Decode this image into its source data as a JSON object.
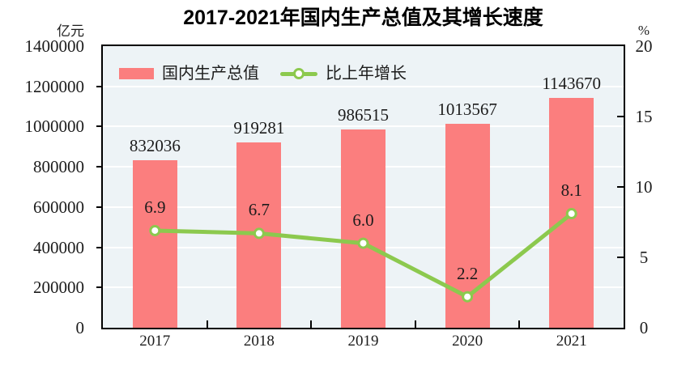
{
  "chart_data": {
    "type": "bar",
    "title": "2017-2021年国内生产总值及其增长速度",
    "categories": [
      "2017",
      "2018",
      "2019",
      "2020",
      "2021"
    ],
    "series": [
      {
        "name": "国内生产总值",
        "type": "bar",
        "axis": "left",
        "unit": "亿元",
        "values": [
          832036,
          919281,
          986515,
          1013567,
          1143670
        ],
        "labels": [
          "832036",
          "919281",
          "986515",
          "1013567",
          "1143670"
        ],
        "color": "#fb7e7e"
      },
      {
        "name": "比上年增长",
        "type": "line",
        "axis": "right",
        "unit": "%",
        "values": [
          6.9,
          6.7,
          6.0,
          2.2,
          8.1
        ],
        "labels": [
          "6.9",
          "6.7",
          "6.0",
          "2.2",
          "8.1"
        ],
        "color": "#8cc94e",
        "marker": "white-circle"
      }
    ],
    "left_axis": {
      "unit": "亿元",
      "min": 0,
      "max": 1400000,
      "tick_step": 200000,
      "tick_values": [
        0,
        200000,
        400000,
        600000,
        800000,
        1000000,
        1200000,
        1400000
      ],
      "tick_labels": [
        "0",
        "200000",
        "400000",
        "600000",
        "800000",
        "1000000",
        "1200000",
        "1400000"
      ]
    },
    "right_axis": {
      "unit": "%",
      "min": 0,
      "max": 20,
      "tick_step": 5,
      "tick_values": [
        0,
        5,
        10,
        15,
        20
      ],
      "tick_labels": [
        "0",
        "5",
        "10",
        "15",
        "20"
      ]
    },
    "grid": "horizontal",
    "legend_position": "top-inside",
    "plot_bg": "#edf3f6",
    "grid_color": "#ffffff",
    "axis_color": "#000000",
    "text_color": "#1c1c1c"
  },
  "legend": {
    "bar_label": "国内生产总值",
    "line_label": "比上年增长"
  },
  "axes_units": {
    "left": "亿元",
    "right": "%"
  }
}
